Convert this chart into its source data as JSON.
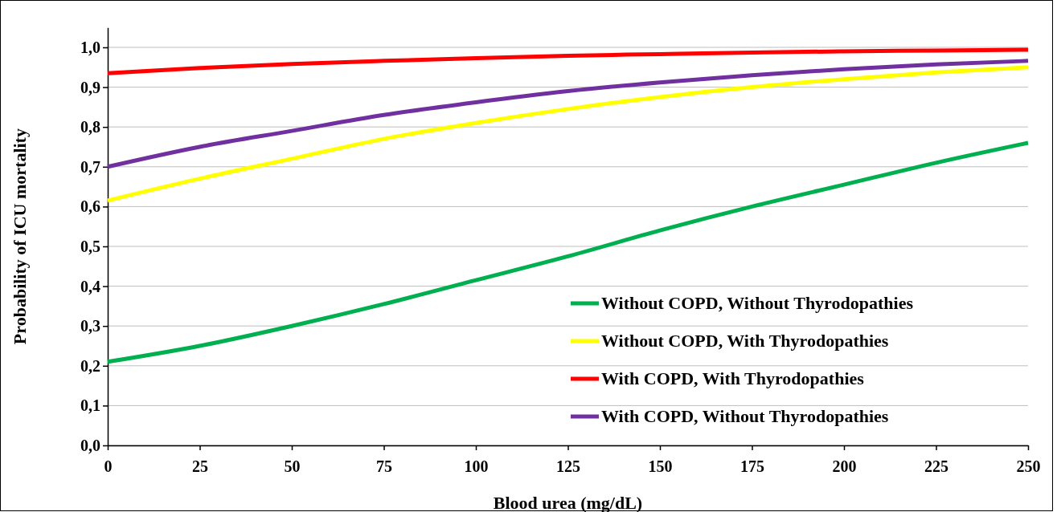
{
  "chart_data": {
    "type": "line",
    "xlabel": "Blood urea (mg/dL)",
    "ylabel": "Probability of  ICU mortality",
    "x": [
      0,
      25,
      50,
      75,
      100,
      125,
      150,
      175,
      200,
      225,
      250
    ],
    "xlim": [
      0,
      250
    ],
    "xticks": [
      0,
      25,
      50,
      75,
      100,
      125,
      150,
      175,
      200,
      225,
      250
    ],
    "ylim": [
      0,
      1.05
    ],
    "yticks": [
      {
        "value": 0,
        "label": "0,0"
      },
      {
        "value": 0.1,
        "label": "0,1"
      },
      {
        "value": 0.2,
        "label": "0,2"
      },
      {
        "value": 0.3,
        "label": "0,3"
      },
      {
        "value": 0.4,
        "label": "0,4"
      },
      {
        "value": 0.5,
        "label": "0,5"
      },
      {
        "value": 0.6,
        "label": "0,6"
      },
      {
        "value": 0.7,
        "label": "0,7"
      },
      {
        "value": 0.8,
        "label": "0,8"
      },
      {
        "value": 0.9,
        "label": "0,9"
      },
      {
        "value": 1,
        "label": "1,0"
      }
    ],
    "grid": "y",
    "legend": "bottom right",
    "marker": "none",
    "line_style": "solid",
    "series": [
      {
        "name": "Without COPD, Without Thyrodopathies",
        "color": "#00b050",
        "values": [
          0.21,
          0.25,
          0.3,
          0.355,
          0.415,
          0.475,
          0.54,
          0.6,
          0.655,
          0.71,
          0.76
        ]
      },
      {
        "name": "Without COPD, With Thyrodopathies",
        "color": "#ffff00",
        "values": [
          0.615,
          0.67,
          0.72,
          0.77,
          0.81,
          0.845,
          0.875,
          0.9,
          0.92,
          0.937,
          0.95
        ]
      },
      {
        "name": "With COPD, With Thyrodopathies",
        "color": "#ff0000",
        "values": [
          0.935,
          0.948,
          0.958,
          0.966,
          0.973,
          0.979,
          0.983,
          0.987,
          0.99,
          0.992,
          0.994
        ]
      },
      {
        "name": "With COPD, Without Thyrodopathies",
        "color": "#7030a0",
        "values": [
          0.7,
          0.75,
          0.79,
          0.83,
          0.862,
          0.89,
          0.912,
          0.93,
          0.945,
          0.957,
          0.966
        ]
      }
    ]
  }
}
